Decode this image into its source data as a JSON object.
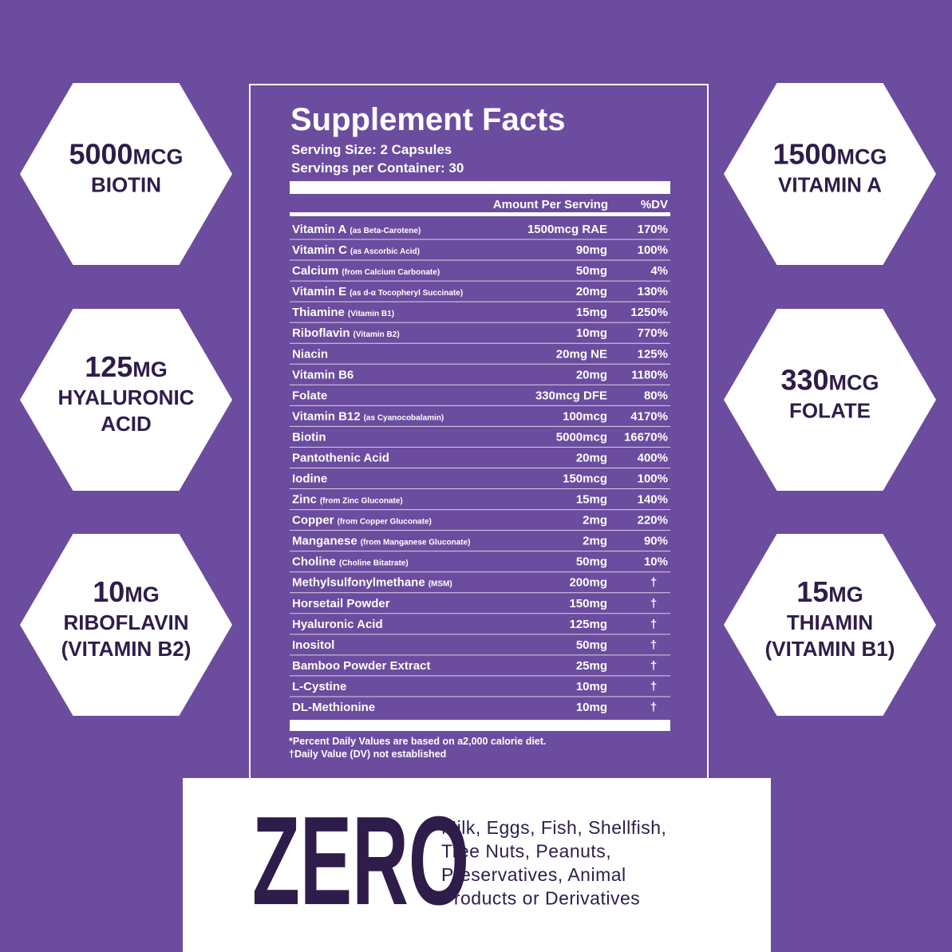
{
  "hexagons": [
    {
      "amount": "5000",
      "unit": "MCG",
      "lines": [
        "BIOTIN"
      ]
    },
    {
      "amount": "125",
      "unit": "MG",
      "lines": [
        "HYALURONIC",
        "ACID"
      ]
    },
    {
      "amount": "10",
      "unit": "MG",
      "lines": [
        "RIBOFLAVIN",
        "(VITAMIN B2)"
      ]
    },
    {
      "amount": "1500",
      "unit": "MCG",
      "lines": [
        "VITAMIN A"
      ]
    },
    {
      "amount": "330",
      "unit": "MCG",
      "lines": [
        "FOLATE"
      ]
    },
    {
      "amount": "15",
      "unit": "MG",
      "lines": [
        "THIAMIN",
        "(VITAMIN B1)"
      ]
    }
  ],
  "facts": {
    "title": "Supplement Facts",
    "serving_size": "Serving Size: 2 Capsules",
    "servings_per_container": "Servings per Container: 30",
    "amount_header": "Amount Per Serving",
    "dv_header": "%DV",
    "rows": [
      {
        "name": "Vitamin A",
        "note": "(as Beta-Carotene)",
        "amount": "1500mcg RAE",
        "dv": "170%"
      },
      {
        "name": "Vitamin C",
        "note": "(as Ascorbic Acid)",
        "amount": "90mg",
        "dv": "100%"
      },
      {
        "name": "Calcium",
        "note": "(from Calcium Carbonate)",
        "amount": "50mg",
        "dv": "4%"
      },
      {
        "name": "Vitamin E",
        "note": "(as d-α Tocopheryl Succinate)",
        "amount": "20mg",
        "dv": "130%"
      },
      {
        "name": "Thiamine",
        "note": "(Vitamin B1)",
        "amount": "15mg",
        "dv": "1250%"
      },
      {
        "name": "Riboflavin",
        "note": "(Vitamin B2)",
        "amount": "10mg",
        "dv": "770%"
      },
      {
        "name": "Niacin",
        "note": null,
        "amount": "20mg NE",
        "dv": "125%"
      },
      {
        "name": "Vitamin B6",
        "note": null,
        "amount": "20mg",
        "dv": "1180%"
      },
      {
        "name": "Folate",
        "note": null,
        "amount": "330mcg DFE",
        "dv": "80%"
      },
      {
        "name": "Vitamin B12",
        "note": "(as Cyanocobalamin)",
        "amount": "100mcg",
        "dv": "4170%"
      },
      {
        "name": "Biotin",
        "note": null,
        "amount": "5000mcg",
        "dv": "16670%"
      },
      {
        "name": "Pantothenic Acid",
        "note": null,
        "amount": "20mg",
        "dv": "400%"
      },
      {
        "name": "Iodine",
        "note": null,
        "amount": "150mcg",
        "dv": "100%"
      },
      {
        "name": "Zinc",
        "note": "(from Zinc Gluconate)",
        "amount": "15mg",
        "dv": "140%"
      },
      {
        "name": "Copper",
        "note": "(from Copper Gluconate)",
        "amount": "2mg",
        "dv": "220%"
      },
      {
        "name": "Manganese",
        "note": "(from Manganese Gluconate)",
        "amount": "2mg",
        "dv": "90%"
      },
      {
        "name": "Choline",
        "note": "(Choline Bitatrate)",
        "amount": "50mg",
        "dv": "10%"
      },
      {
        "name": "Methylsulfonylmethane",
        "note": "(MSM)",
        "amount": "200mg",
        "dv": "†"
      },
      {
        "name": "Horsetail Powder",
        "note": null,
        "amount": "150mg",
        "dv": "†"
      },
      {
        "name": "Hyaluronic Acid",
        "note": null,
        "amount": "125mg",
        "dv": "†"
      },
      {
        "name": "Inositol",
        "note": null,
        "amount": "50mg",
        "dv": "†"
      },
      {
        "name": "Bamboo Powder Extract",
        "note": null,
        "amount": "25mg",
        "dv": "†"
      },
      {
        "name": "L-Cystine",
        "note": null,
        "amount": "10mg",
        "dv": "†"
      },
      {
        "name": "DL-Methionine",
        "note": null,
        "amount": "10mg",
        "dv": "†"
      }
    ],
    "footnotes": [
      "*Percent Daily Values are based on a2,000 calorie diet.",
      "†Daily Value (DV) not established"
    ]
  },
  "zero": {
    "headline": "ZERO",
    "lines": [
      "Milk, Eggs, Fish, Shellfish,",
      "Tree Nuts, Peanuts,",
      "Preservatives, Animal",
      "Products or Derivatives"
    ]
  }
}
